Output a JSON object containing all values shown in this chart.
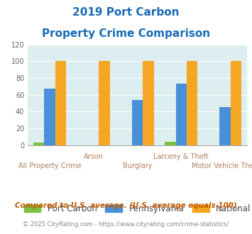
{
  "title_line1": "2019 Port Carbon",
  "title_line2": "Property Crime Comparison",
  "categories": [
    "All Property Crime",
    "Arson",
    "Burglary",
    "Larceny & Theft",
    "Motor Vehicle Theft"
  ],
  "port_carbon": [
    3,
    0,
    0,
    4,
    0
  ],
  "pennsylvania": [
    67,
    0,
    54,
    73,
    45
  ],
  "national": [
    100,
    100,
    100,
    100,
    100
  ],
  "bar_colors": {
    "port_carbon": "#7dc142",
    "pennsylvania": "#4a90d9",
    "national": "#f5a623"
  },
  "ylim": [
    0,
    120
  ],
  "yticks": [
    0,
    20,
    40,
    60,
    80,
    100,
    120
  ],
  "legend_labels": [
    "Port Carbon",
    "Pennsylvania",
    "National"
  ],
  "footnote1": "Compared to U.S. average. (U.S. average equals 100)",
  "footnote2": "© 2025 CityRating.com - https://www.cityrating.com/crime-statistics/",
  "bg_color": "#ddeef0",
  "title_color": "#1a6cb5",
  "xlabel_color": "#b08060",
  "footnote1_color": "#c05800",
  "footnote2_color": "#888888"
}
